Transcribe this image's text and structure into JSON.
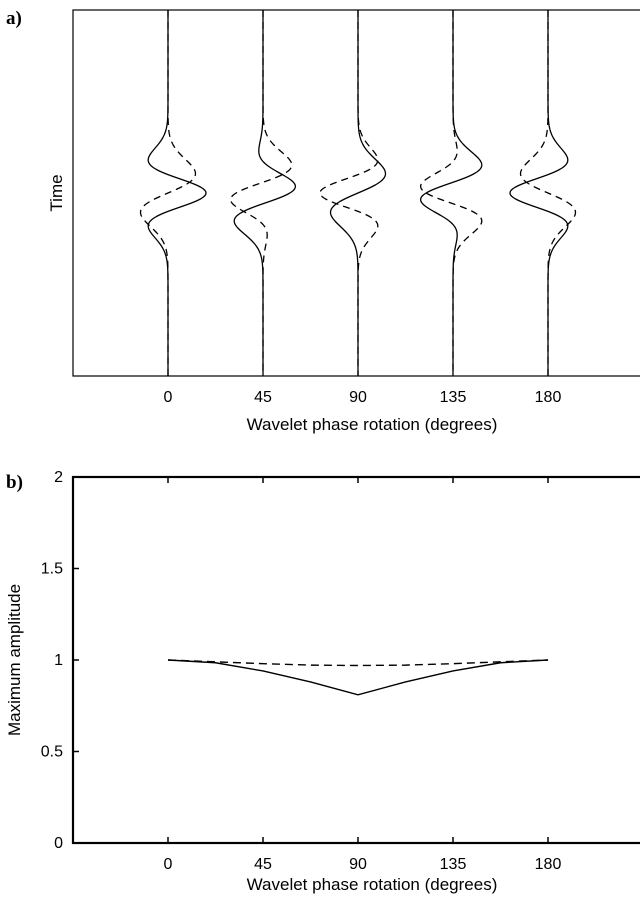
{
  "chart_data": [
    {
      "panel_label": "a)",
      "type": "line",
      "title": "",
      "xlabel": "Wavelet phase rotation (degrees)",
      "ylabel": "Time",
      "x_ticks": [
        "0",
        "45",
        "90",
        "135",
        "180"
      ],
      "xlim": [
        -45,
        225
      ],
      "grid": false,
      "legend": "none",
      "description_of_marks": "wiggle traces",
      "traces": [
        {
          "phase_deg": 0,
          "solid_shift": 0,
          "dashed_shift": 0
        },
        {
          "phase_deg": 45,
          "solid_shift": 45,
          "dashed_shift": 45
        },
        {
          "phase_deg": 90,
          "solid_shift": 90,
          "dashed_shift": 90
        },
        {
          "phase_deg": 135,
          "solid_shift": 135,
          "dashed_shift": 135
        },
        {
          "phase_deg": 180,
          "solid_shift": 180,
          "dashed_shift": 180
        }
      ],
      "series": [
        {
          "style": "solid",
          "color": "#000000"
        },
        {
          "style": "dashed",
          "color": "#000000"
        }
      ]
    },
    {
      "panel_label": "b)",
      "type": "line",
      "title": "",
      "xlabel": "Wavelet phase rotation (degrees)",
      "ylabel": "Maximum amplitude",
      "x_ticks": [
        "0",
        "45",
        "90",
        "135",
        "180"
      ],
      "y_ticks": [
        "0",
        "0.5",
        "1",
        "1.5",
        "2"
      ],
      "xlim": [
        -45,
        225
      ],
      "ylim": [
        0,
        2
      ],
      "grid": false,
      "legend": "none",
      "series": [
        {
          "style": "solid",
          "color": "#000000",
          "x": [
            0,
            22.5,
            45,
            67.5,
            90,
            112.5,
            135,
            157.5,
            180
          ],
          "y": [
            1.0,
            0.985,
            0.94,
            0.88,
            0.81,
            0.88,
            0.94,
            0.985,
            1.0
          ]
        },
        {
          "style": "dashed",
          "color": "#000000",
          "x": [
            0,
            22.5,
            45,
            67.5,
            90,
            112.5,
            135,
            157.5,
            180
          ],
          "y": [
            1.0,
            0.99,
            0.98,
            0.972,
            0.97,
            0.972,
            0.98,
            0.99,
            1.0
          ]
        }
      ]
    }
  ]
}
